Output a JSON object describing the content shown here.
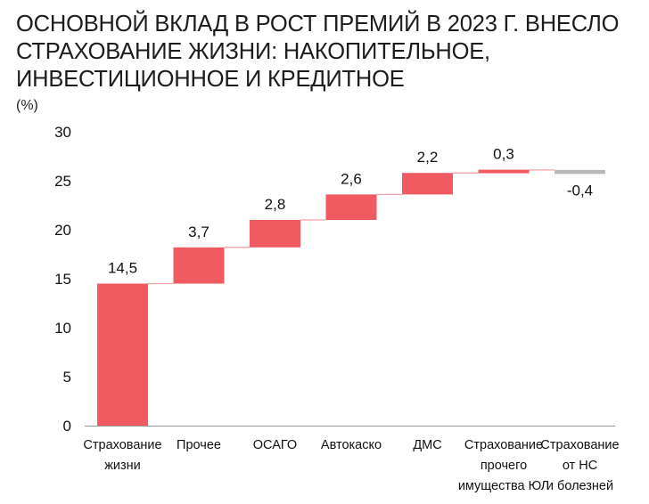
{
  "title": "ОСНОВНОЙ ВКЛАД В РОСТ ПРЕМИЙ В 2023 Г. ВНЕСЛО СТРАХОВАНИЕ ЖИЗНИ: НАКОПИТЕЛЬНОЕ, ИНВЕСТИЦИОННОЕ И КРЕДИТНОЕ",
  "unit_label": "(%)",
  "colors": {
    "positive": "#ef5b60",
    "negative": "#b8b8b8",
    "connector": "#f4a3a6",
    "axis": "#999999"
  },
  "chart_data": {
    "type": "bar",
    "subtype": "waterfall",
    "title": "ОСНОВНОЙ ВКЛАД В РОСТ ПРЕМИЙ В 2023 Г. ВНЕСЛО СТРАХОВАНИЕ ЖИЗНИ: НАКОПИТЕЛЬНОЕ, ИНВЕСТИЦИОННОЕ И КРЕДИТНОЕ",
    "ylabel": "(%)",
    "xlabel": "",
    "ylim": [
      0,
      30
    ],
    "yticks": [
      0,
      5,
      10,
      15,
      20,
      25,
      30
    ],
    "grid": false,
    "categories": [
      [
        "Страхование",
        "жизни"
      ],
      [
        "Прочее"
      ],
      [
        "ОСАГО"
      ],
      [
        "Автокаско"
      ],
      [
        "ДМС"
      ],
      [
        "Страхование",
        "прочего",
        "имущества ЮЛ"
      ],
      [
        "Страхование",
        "от НС",
        "и болезней"
      ]
    ],
    "values": [
      14.5,
      3.7,
      2.8,
      2.6,
      2.2,
      0.3,
      -0.4
    ],
    "value_labels": [
      "14,5",
      "3,7",
      "2,8",
      "2,6",
      "2,2",
      "0,3",
      "-0,4"
    ]
  }
}
